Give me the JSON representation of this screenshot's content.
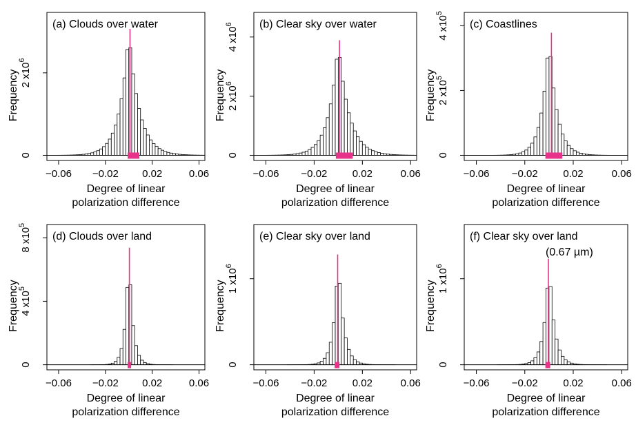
{
  "figure": {
    "panels_shared": {
      "xlabel_line1": "Degree of linear",
      "xlabel_line2": "polarization difference",
      "ylabel": "Frequency",
      "x_tick_labels": [
        "-0.06",
        "-0.02",
        "0.02",
        "0.06"
      ]
    }
  },
  "colors": {
    "marker": "#e8338a",
    "bars": "#ffffff",
    "outline": "#000000"
  },
  "chart_data": [
    {
      "type": "bar",
      "title": "(a) Clouds over water",
      "xlabel": "Degree of linear polarization difference",
      "ylabel": "Frequency",
      "xlim": [
        -0.07,
        0.065
      ],
      "x_ticks": [
        -0.06,
        -0.02,
        0.02,
        0.06
      ],
      "x_tick_labels": [
        "-0.06",
        "-0.02",
        "0.02",
        "0.06"
      ],
      "ylim": [
        0,
        3300000
      ],
      "y_ticks": [
        0,
        2000000
      ],
      "y_tick_labels": [
        {
          "base": "0",
          "exp": ""
        },
        {
          "base": "2 x10",
          "exp": "6"
        }
      ],
      "peak": 3000000,
      "spread_left": 0.008,
      "spread_right": 0.009,
      "median": 0.001,
      "band": [
        -0.001,
        0.009
      ]
    },
    {
      "type": "bar",
      "title": "(b) Clear sky over water",
      "xlabel": "Degree of linear polarization difference",
      "ylabel": "Frequency",
      "xlim": [
        -0.07,
        0.065
      ],
      "x_ticks": [
        -0.06,
        -0.02,
        0.02,
        0.06
      ],
      "x_tick_labels": [
        "-0.06",
        "-0.02",
        "0.02",
        "0.06"
      ],
      "ylim": [
        0,
        4600000
      ],
      "y_ticks": [
        0,
        2000000,
        4000000
      ],
      "y_tick_labels": [
        {
          "base": "0",
          "exp": ""
        },
        {
          "base": "2 x10",
          "exp": "6"
        },
        {
          "base": "4 x10",
          "exp": "6"
        }
      ],
      "peak": 3800000,
      "spread_left": 0.008,
      "spread_right": 0.009,
      "median": 0.001,
      "band": [
        -0.002,
        0.012
      ]
    },
    {
      "type": "bar",
      "title": "(c) Coastlines",
      "xlabel": "Degree of linear polarization difference",
      "ylabel": "Frequency",
      "xlim": [
        -0.07,
        0.065
      ],
      "x_ticks": [
        -0.06,
        -0.02,
        0.02,
        0.06
      ],
      "x_tick_labels": [
        "-0.06",
        "-0.02",
        "0.02",
        "0.06"
      ],
      "ylim": [
        0,
        420000
      ],
      "y_ticks": [
        0,
        200000,
        400000
      ],
      "y_tick_labels": [
        {
          "base": "0",
          "exp": ""
        },
        {
          "base": "2 x10",
          "exp": "5"
        },
        {
          "base": "4 x10",
          "exp": "5"
        }
      ],
      "peak": 370000,
      "spread_left": 0.006,
      "spread_right": 0.0065,
      "median": 0.002,
      "band": [
        -0.003,
        0.011
      ]
    },
    {
      "type": "bar",
      "title": "(d) Clouds over land",
      "xlabel": "Degree of linear polarization difference",
      "ylabel": "Frequency",
      "xlim": [
        -0.07,
        0.065
      ],
      "x_ticks": [
        -0.06,
        -0.02,
        0.02,
        0.06
      ],
      "x_tick_labels": [
        "-0.06",
        "-0.02",
        "0.02",
        "0.06"
      ],
      "ylim": [
        0,
        840000
      ],
      "y_ticks": [
        0,
        400000,
        800000
      ],
      "y_tick_labels": [
        {
          "base": "0",
          "exp": ""
        },
        {
          "base": "4 x10",
          "exp": "5"
        },
        {
          "base": "8 x10",
          "exp": "5"
        }
      ],
      "peak": 720000,
      "spread_left": 0.0032,
      "spread_right": 0.0035,
      "median": 0.0005,
      "band": [
        -0.001,
        0.002
      ]
    },
    {
      "type": "bar",
      "title": "(e) Clear sky over land",
      "xlabel": "Degree of linear polarization difference",
      "ylabel": "Frequency",
      "xlim": [
        -0.07,
        0.065
      ],
      "x_ticks": [
        -0.06,
        -0.02,
        0.02,
        0.06
      ],
      "x_tick_labels": [
        "-0.06",
        "-0.02",
        "0.02",
        "0.06"
      ],
      "ylim": [
        0,
        1550000
      ],
      "y_ticks": [
        0,
        1000000
      ],
      "y_tick_labels": [
        {
          "base": "0",
          "exp": ""
        },
        {
          "base": "1 x10",
          "exp": "6"
        }
      ],
      "peak": 1250000,
      "spread_left": 0.004,
      "spread_right": 0.0045,
      "median": -0.0005,
      "band": [
        -0.003,
        0.001
      ]
    },
    {
      "type": "bar",
      "title": "(f) Clear sky over land",
      "subtitle": "(0.67 µm)",
      "xlabel": "Degree of linear polarization difference",
      "ylabel": "Frequency",
      "xlim": [
        -0.07,
        0.065
      ],
      "x_ticks": [
        -0.06,
        -0.02,
        0.02,
        0.06
      ],
      "x_tick_labels": [
        "-0.06",
        "-0.02",
        "0.02",
        "0.06"
      ],
      "ylim": [
        0,
        1550000
      ],
      "y_ticks": [
        0,
        1000000
      ],
      "y_tick_labels": [
        {
          "base": "0",
          "exp": ""
        },
        {
          "base": "1 x10",
          "exp": "6"
        }
      ],
      "peak": 1200000,
      "spread_left": 0.0042,
      "spread_right": 0.0045,
      "median": -0.0005,
      "band": [
        -0.003,
        0.001
      ]
    }
  ]
}
